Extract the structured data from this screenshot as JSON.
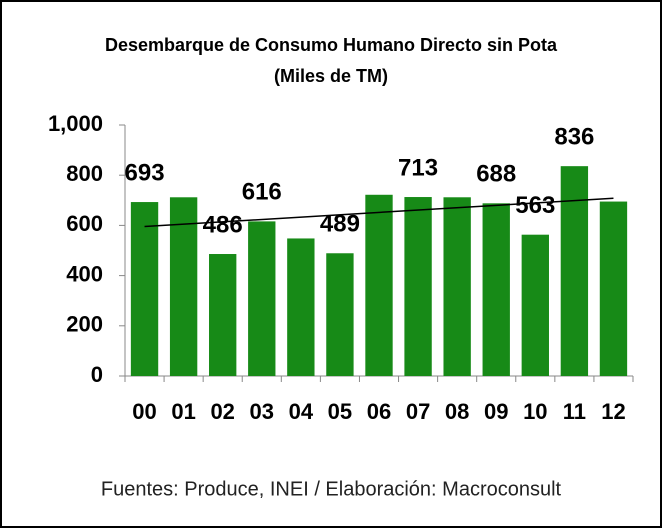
{
  "chart_data": {
    "type": "bar",
    "title": "Desembarque de Consumo Humano Directo sin Pota",
    "subtitle": "(Miles de TM)",
    "source": "Fuentes: Produce, INEI / Elaboración: Macroconsult",
    "categories": [
      "00",
      "01",
      "02",
      "03",
      "04",
      "05",
      "06",
      "07",
      "08",
      "09",
      "10",
      "11",
      "12"
    ],
    "values": [
      693,
      712,
      486,
      616,
      548,
      489,
      722,
      713,
      712,
      688,
      563,
      836,
      695
    ],
    "show_label": [
      true,
      false,
      true,
      true,
      false,
      true,
      false,
      true,
      false,
      true,
      true,
      true,
      false
    ],
    "color": "#178a17",
    "trendline": "linear",
    "ylim": [
      0,
      1000
    ],
    "yticks": [
      0,
      200,
      400,
      600,
      800,
      {
        "value": 1000,
        "label": "1,000"
      }
    ],
    "grid": false
  }
}
